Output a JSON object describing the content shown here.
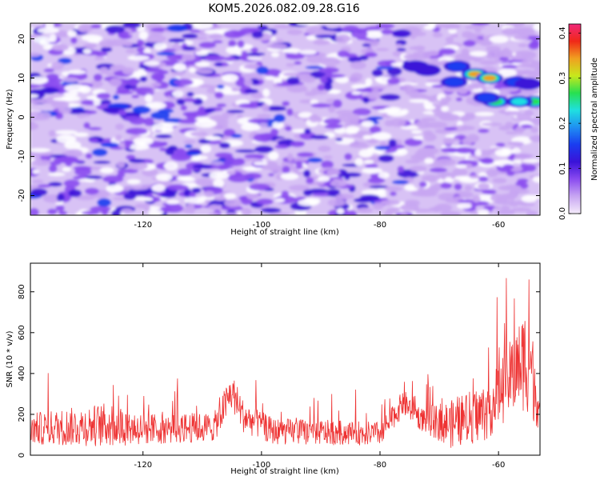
{
  "title": "KOM5.2026.082.09.28.G16",
  "chart_data": [
    {
      "type": "heatmap",
      "name": "spectrogram",
      "xlabel": "Height of straight line (km)",
      "ylabel": "Frequency (Hz)",
      "xlim": [
        -139,
        -53
      ],
      "ylim": [
        -25,
        24
      ],
      "xticks": [
        -120,
        -100,
        -80,
        -60
      ],
      "yticks": [
        -20,
        -10,
        0,
        10,
        20
      ],
      "colorbar": {
        "label": "Normalized spectral amplitude",
        "range": [
          0.0,
          0.42
        ],
        "ticks": [
          0.0,
          0.1,
          0.2,
          0.3,
          0.4
        ],
        "colors": [
          "#f5ecfb",
          "#c8a6f2",
          "#8a4bf0",
          "#3a12d8",
          "#1a3cf0",
          "#1f8ff2",
          "#1fe0e0",
          "#28e050",
          "#c8e81c",
          "#f0a020",
          "#f02818",
          "#f0287a"
        ]
      },
      "hotspots": [
        {
          "x": -64,
          "y": 11,
          "v": 0.36
        },
        {
          "x": -61.5,
          "y": 10,
          "v": 0.34
        },
        {
          "x": -67,
          "y": 13,
          "v": 0.2
        },
        {
          "x": -67.5,
          "y": 9,
          "v": 0.2
        },
        {
          "x": -57,
          "y": 9,
          "v": 0.16
        },
        {
          "x": -60.5,
          "y": 4,
          "v": 0.32
        },
        {
          "x": -54,
          "y": 4,
          "v": 0.3
        },
        {
          "x": -56.5,
          "y": 4,
          "v": 0.24
        },
        {
          "x": -62,
          "y": 5,
          "v": 0.18
        },
        {
          "x": -55,
          "y": 8.5,
          "v": 0.15
        },
        {
          "x": -72,
          "y": 12,
          "v": 0.12
        },
        {
          "x": -74,
          "y": 13,
          "v": 0.1
        }
      ]
    },
    {
      "type": "line",
      "name": "snr",
      "xlabel": "Height of straight line (km)",
      "ylabel": "SNR (10 * v/v)",
      "xlim": [
        -139,
        -53
      ],
      "ylim": [
        0,
        940
      ],
      "xticks": [
        -120,
        -100,
        -80,
        -60
      ],
      "yticks": [
        0,
        200,
        400,
        600,
        800
      ],
      "color": "#ee3333",
      "anchors": [
        {
          "x": -139,
          "base": 120,
          "amp": 120
        },
        {
          "x": -125,
          "base": 140,
          "amp": 170
        },
        {
          "x": -120,
          "base": 120,
          "amp": 120
        },
        {
          "x": -108,
          "base": 130,
          "amp": 110
        },
        {
          "x": -105,
          "base": 300,
          "amp": 150
        },
        {
          "x": -103,
          "base": 180,
          "amp": 120
        },
        {
          "x": -98,
          "base": 110,
          "amp": 100
        },
        {
          "x": -80,
          "base": 100,
          "amp": 90
        },
        {
          "x": -76,
          "base": 250,
          "amp": 100
        },
        {
          "x": -73,
          "base": 170,
          "amp": 90
        },
        {
          "x": -68,
          "base": 140,
          "amp": 180
        },
        {
          "x": -62,
          "base": 200,
          "amp": 220
        },
        {
          "x": -57,
          "base": 400,
          "amp": 300
        },
        {
          "x": -55,
          "base": 460,
          "amp": 440
        },
        {
          "x": -53,
          "base": 200,
          "amp": 150
        }
      ]
    }
  ]
}
